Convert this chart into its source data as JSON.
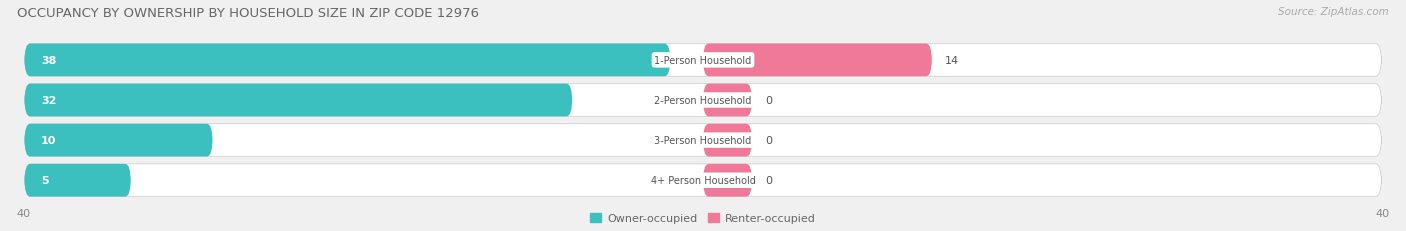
{
  "title": "OCCUPANCY BY OWNERSHIP BY HOUSEHOLD SIZE IN ZIP CODE 12976",
  "source": "Source: ZipAtlas.com",
  "categories": [
    "1-Person Household",
    "2-Person Household",
    "3-Person Household",
    "4+ Person Household"
  ],
  "owner_values": [
    38,
    32,
    10,
    5
  ],
  "renter_values": [
    14,
    0,
    0,
    0
  ],
  "owner_color": "#3CBFBF",
  "renter_color": "#F07898",
  "renter_stub": 3,
  "axis_max": 40,
  "background_color": "#f0f0f0",
  "row_bg_color": "#e8e8e8",
  "title_fontsize": 9.5,
  "source_fontsize": 7.5,
  "bar_label_fontsize": 8,
  "category_fontsize": 7,
  "axis_fontsize": 8,
  "legend_fontsize": 8
}
